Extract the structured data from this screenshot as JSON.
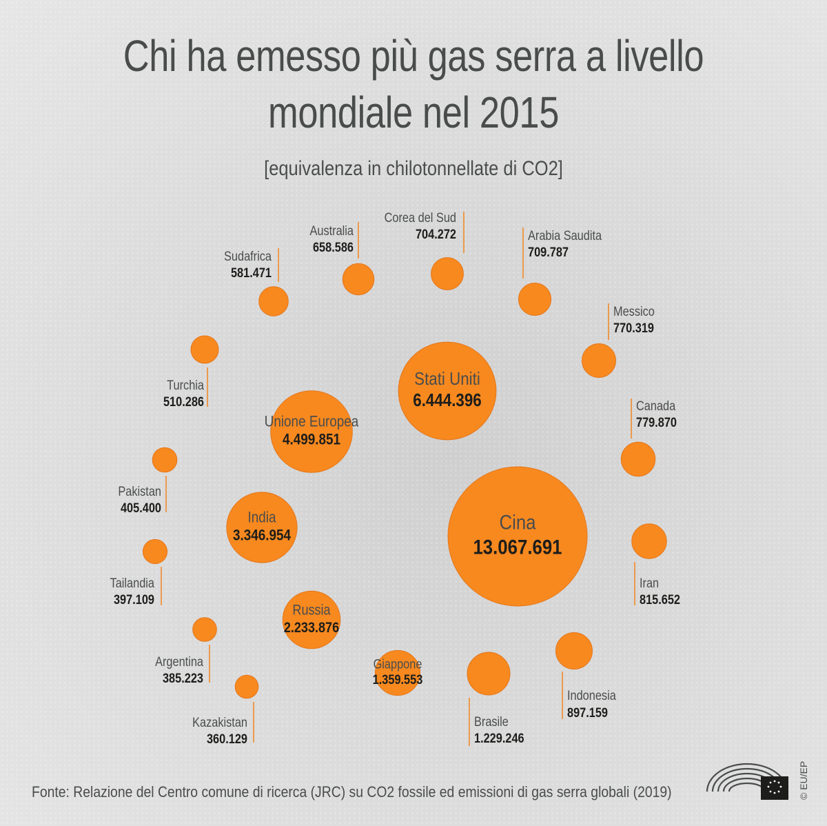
{
  "title_line1": "Chi ha emesso più gas serra a livello",
  "title_line2": "mondiale nel 2015",
  "subtitle": "[equivalenza in chilotonnellate di CO2]",
  "source": "Fonte: Relazione del Centro comune di ricerca (JRC) su CO2 fossile ed emissioni di gas serra globali (2019)",
  "copyright": "© EU/EP",
  "colors": {
    "bubble": "#f7891f",
    "bubble_stroke": "#e5761a",
    "leader": "#f08a2a",
    "text": "#4a4c4c",
    "value": "#1d1d1b"
  },
  "chart_data": {
    "type": "bubble",
    "title": "Chi ha emesso più gas serra a livello mondiale nel 2015",
    "subtitle": "[equivalenza in chilotonnellate di CO2]",
    "unit": "chilotonnellate di CO2 equivalente",
    "items": [
      {
        "name": "Cina",
        "value": 13067691,
        "label": "13.067.691"
      },
      {
        "name": "Stati Uniti",
        "value": 6444396,
        "label": "6.444.396"
      },
      {
        "name": "Unione Europea",
        "value": 4499851,
        "label": "4.499.851"
      },
      {
        "name": "India",
        "value": 3346954,
        "label": "3.346.954"
      },
      {
        "name": "Russia",
        "value": 2233876,
        "label": "2.233.876"
      },
      {
        "name": "Giappone",
        "value": 1359553,
        "label": "1.359.553"
      },
      {
        "name": "Brasile",
        "value": 1229246,
        "label": "1.229.246"
      },
      {
        "name": "Indonesia",
        "value": 897159,
        "label": "897.159"
      },
      {
        "name": "Iran",
        "value": 815652,
        "label": "815.652"
      },
      {
        "name": "Canada",
        "value": 779870,
        "label": "779.870"
      },
      {
        "name": "Messico",
        "value": 770319,
        "label": "770.319"
      },
      {
        "name": "Arabia Saudita",
        "value": 709787,
        "label": "709.787"
      },
      {
        "name": "Corea del Sud",
        "value": 704272,
        "label": "704.272"
      },
      {
        "name": "Australia",
        "value": 658586,
        "label": "658.586"
      },
      {
        "name": "Sudafrica",
        "value": 581471,
        "label": "581.471"
      },
      {
        "name": "Turchia",
        "value": 510286,
        "label": "510.286"
      },
      {
        "name": "Pakistan",
        "value": 405400,
        "label": "405.400"
      },
      {
        "name": "Tailandia",
        "value": 397109,
        "label": "397.109"
      },
      {
        "name": "Argentina",
        "value": 385223,
        "label": "385.223"
      },
      {
        "name": "Kazakistan",
        "value": 360129,
        "label": "360.129"
      }
    ]
  }
}
